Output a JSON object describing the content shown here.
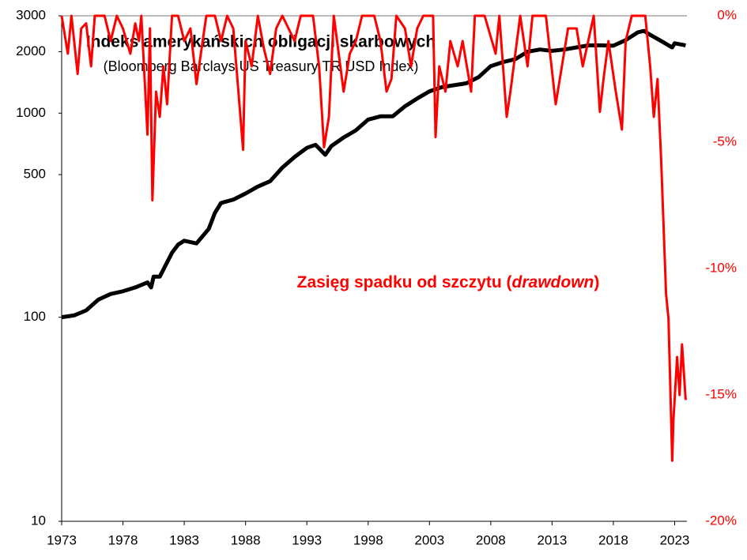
{
  "chart_data": {
    "type": "line",
    "title": "Indeks amerykańskich obligacji skarbowych",
    "subtitle": "(Bloomberg Barclays US Treasury TR USD Index)",
    "annotation": [
      "Zasięg spadku od szczytu (",
      "drawdown",
      ")"
    ],
    "annotation_color": "#ff0000",
    "yscale": "log",
    "xlim": [
      1973,
      2024
    ],
    "xticks": [
      1973,
      1978,
      1983,
      1988,
      1993,
      1998,
      2003,
      2008,
      2013,
      2018,
      2023
    ],
    "ylim": [
      10,
      3000
    ],
    "yticks": [
      10,
      100,
      500,
      1000,
      2000,
      3000
    ],
    "y2lim": [
      -20,
      0
    ],
    "y2ticks": [
      {
        "value": 0,
        "label": "0%"
      },
      {
        "value": -5,
        "label": "-5%"
      },
      {
        "value": -10,
        "label": "-10%"
      },
      {
        "value": -15,
        "label": "-15%"
      },
      {
        "value": -20,
        "label": "-20%"
      }
    ],
    "series": [
      {
        "name": "Indeks",
        "color": "#000000",
        "axis": "y",
        "x": [
          1973,
          1974,
          1975,
          1976,
          1977,
          1978,
          1979,
          1980,
          1980.3,
          1980.5,
          1981,
          1982,
          1982.5,
          1983,
          1984,
          1985,
          1985.5,
          1986,
          1987,
          1988,
          1989,
          1990,
          1991,
          1992,
          1993,
          1993.7,
          1994.5,
          1995,
          1996,
          1997,
          1998,
          1999,
          2000,
          2001,
          2002,
          2003,
          2004,
          2005,
          2006,
          2007,
          2008,
          2009,
          2010,
          2011,
          2012,
          2013,
          2014,
          2015,
          2016,
          2017,
          2018,
          2019,
          2020,
          2020.5,
          2021,
          2022,
          2022.5,
          2022.8,
          2023,
          2023.9
        ],
        "values": [
          100,
          102,
          108,
          122,
          130,
          134,
          140,
          148,
          140,
          158,
          158,
          207,
          227,
          237,
          230,
          271,
          325,
          363,
          377,
          404,
          437,
          464,
          541,
          610,
          676,
          700,
          625,
          690,
          760,
          824,
          930,
          965,
          965,
          1080,
          1180,
          1280,
          1340,
          1370,
          1400,
          1500,
          1700,
          1780,
          1840,
          2000,
          2050,
          2020,
          2050,
          2100,
          2150,
          2150,
          2140,
          2280,
          2490,
          2530,
          2420,
          2240,
          2150,
          2100,
          2200,
          2150
        ]
      },
      {
        "name": "Drawdown",
        "color": "#ff0000",
        "axis": "y2",
        "x": [
          1973,
          1973.5,
          1973.8,
          1974.3,
          1974.6,
          1975,
          1975.4,
          1975.7,
          1976.5,
          1977,
          1977.5,
          1978,
          1978.6,
          1979,
          1979.3,
          1979.5,
          1980,
          1980.2,
          1980.4,
          1980.7,
          1981,
          1981.3,
          1981.6,
          1982,
          1982.5,
          1983,
          1983.5,
          1984,
          1984.5,
          1984.8,
          1985.5,
          1986,
          1986.5,
          1987,
          1987.5,
          1987.8,
          1988,
          1988.5,
          1989,
          1989.5,
          1990,
          1990.5,
          1991,
          1992,
          1992.5,
          1993.5,
          1994,
          1994.4,
          1994.8,
          1995.2,
          1996,
          1996.5,
          1997,
          1997.5,
          1998.5,
          1999,
          1999.5,
          1999.9,
          2000.3,
          2001,
          2001.5,
          2002,
          2002.5,
          2003.3,
          2003.5,
          2003.8,
          2004.3,
          2004.7,
          2005.3,
          2005.7,
          2006.4,
          2006.7,
          2007.5,
          2008.4,
          2008.7,
          2009.3,
          2009.6,
          2010,
          2010.4,
          2011,
          2011.4,
          2012.5,
          2013.3,
          2013.8,
          2014.3,
          2015,
          2015.5,
          2016.4,
          2016.9,
          2017.2,
          2017.6,
          2018.2,
          2018.7,
          2019,
          2019.5,
          2020.6,
          2021,
          2021.3,
          2021.6,
          2021.9,
          2022.3,
          2022.5,
          2022.8,
          2022.9,
          2023.2,
          2023.4,
          2023.6,
          2023.9
        ],
        "values": [
          0,
          -1.5,
          0,
          -2.3,
          -0.5,
          -0.3,
          -2,
          0,
          0,
          -1,
          0,
          -0.5,
          -1.5,
          -0.3,
          -1,
          0,
          -4.7,
          -0.5,
          -7.3,
          -3,
          -4,
          -2,
          -3.5,
          0,
          0,
          -1,
          -0.5,
          -2.7,
          -1,
          0,
          0,
          -1,
          0,
          -0.5,
          -3.5,
          -5.3,
          -1,
          -2,
          0,
          -1.3,
          -2.3,
          -0.5,
          0,
          -1,
          0,
          0,
          -2,
          -5.2,
          -4,
          0,
          -3,
          -1.5,
          -1,
          0,
          0,
          -1,
          -3,
          -2.5,
          0,
          -0.5,
          -2,
          -0.5,
          0,
          0,
          -4.8,
          -2,
          -3,
          -1,
          -2,
          -1,
          -3,
          0,
          0,
          -1.5,
          0,
          -4,
          -3,
          -1.5,
          0,
          -2,
          0,
          0,
          -3.5,
          -2,
          -0.5,
          -0.5,
          -2,
          0,
          -3.8,
          -2.5,
          -1,
          -3,
          -4.5,
          -1,
          0,
          0,
          -2,
          -4,
          -2.5,
          -5.7,
          -11,
          -12,
          -17.6,
          -16,
          -13.5,
          -15,
          -13,
          -15.2
        ]
      }
    ]
  }
}
